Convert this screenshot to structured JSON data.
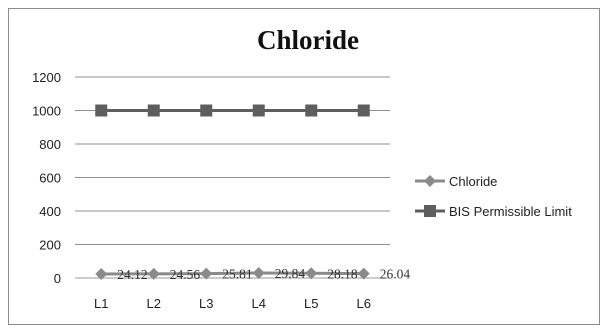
{
  "chart_data": {
    "type": "line",
    "title": "Chloride",
    "categories": [
      "L1",
      "L2",
      "L3",
      "L4",
      "L5",
      "L6"
    ],
    "ylim": [
      0,
      1200
    ],
    "yticks": [
      0,
      200,
      400,
      600,
      800,
      1000,
      1200
    ],
    "grid": true,
    "legend_position": "right",
    "series": [
      {
        "name": "Chloride",
        "values": [
          24.12,
          24.56,
          25.81,
          29.84,
          28.18,
          26.04
        ],
        "labels": [
          "24.12",
          "24.56",
          "25.81",
          "29.84",
          "28.18",
          "26.04"
        ],
        "marker": "diamond",
        "color": "#8a8a8a"
      },
      {
        "name": "BIS Permissible Limit",
        "values": [
          1000,
          1000,
          1000,
          1000,
          1000,
          1000
        ],
        "marker": "square",
        "color": "#5e5e5e"
      }
    ]
  }
}
